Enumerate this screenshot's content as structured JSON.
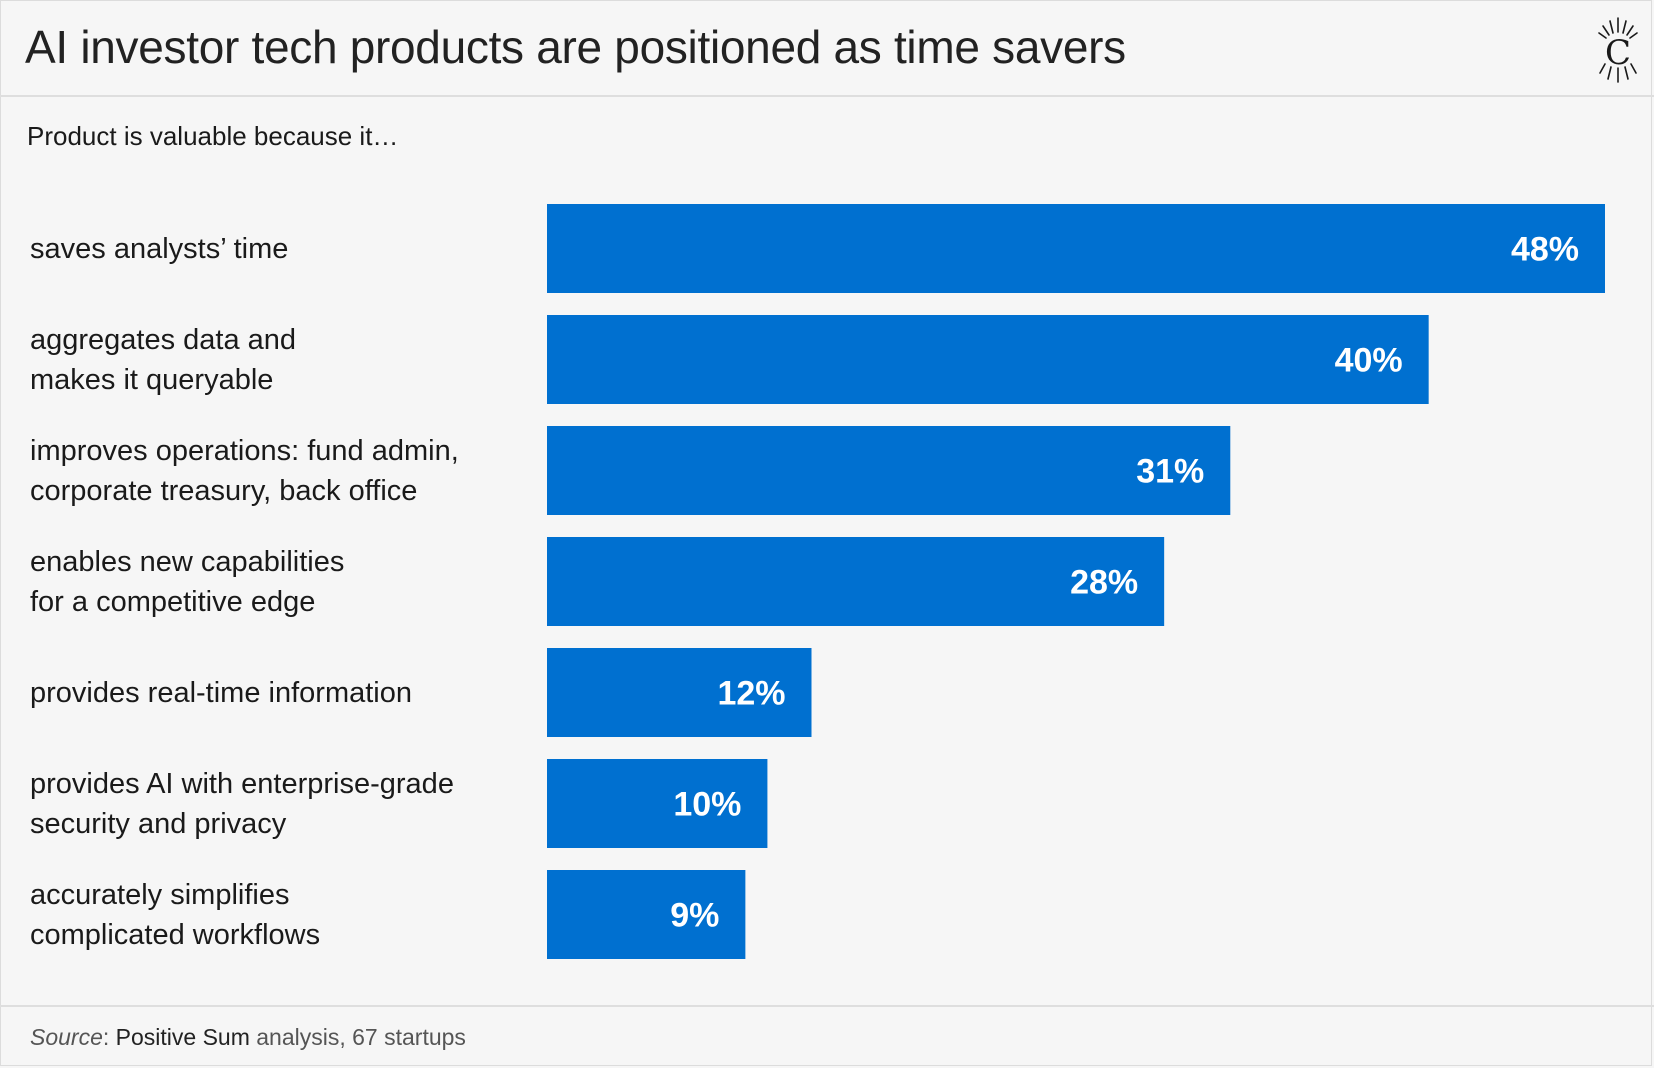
{
  "header": {
    "title": "AI investor tech products are positioned as time savers"
  },
  "footer": {
    "source_prefix": "Source",
    "source_sep": ": ",
    "source_org": "Positive Sum",
    "source_rest": " analysis, 67 startups"
  },
  "colors": {
    "bar": "#0070d0",
    "bar_label": "#ffffff",
    "background": "#f6f6f6"
  },
  "icons": {
    "logo": "crowned-c-logo-icon"
  },
  "chart_data": {
    "type": "bar",
    "orientation": "horizontal",
    "title": "AI investor tech products are positioned as time savers",
    "subtitle": "Product is valuable because it…",
    "categories": [
      "saves analysts’ time",
      "aggregates data and\nmakes it queryable",
      "improves operations: fund admin,\ncorporate treasury, back office",
      "enables new capabilities\nfor a competitive edge",
      "provides real-time information",
      "provides AI with enterprise-grade\nsecurity and privacy",
      "accurately simplifies\ncomplicated workflows"
    ],
    "values": [
      48,
      40,
      31,
      28,
      12,
      10,
      9
    ],
    "value_labels": [
      "48%",
      "40%",
      "31%",
      "28%",
      "12%",
      "10%",
      "9%"
    ],
    "unit": "%",
    "xlim": [
      0,
      48
    ],
    "grid": false,
    "legend": "none"
  }
}
